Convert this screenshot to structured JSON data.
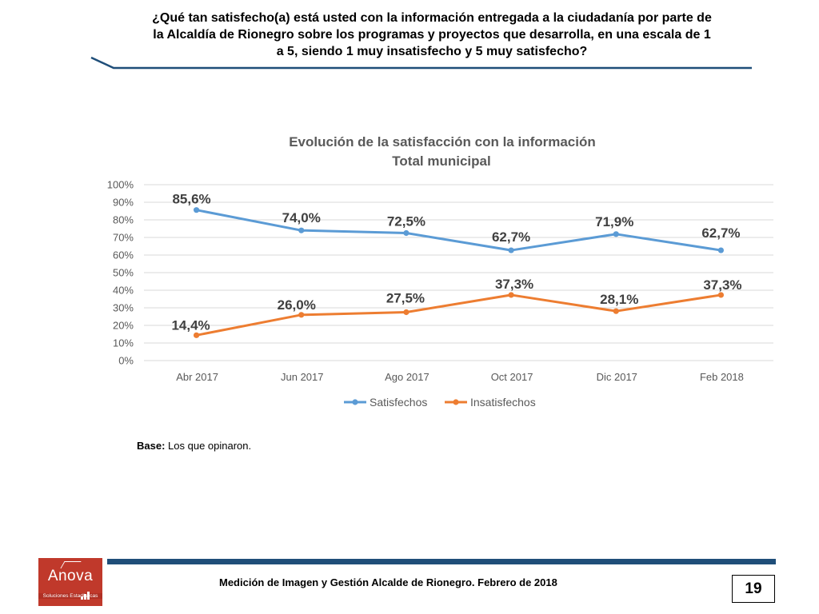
{
  "question": {
    "lines": [
      "¿Qué tan satisfecho(a) está usted con la información entregada a la ciudadanía por parte de",
      "la Alcaldía de Rionegro sobre los programas y proyectos que desarrolla, en una escala de 1",
      "a 5, siendo 1 muy insatisfecho y 5 muy satisfecho?"
    ]
  },
  "chart_data": {
    "type": "line",
    "title": "Evolución de la satisfacción con la información",
    "subtitle": "Total municipal",
    "categories": [
      "Abr 2017",
      "Jun 2017",
      "Ago 2017",
      "Oct 2017",
      "Dic 2017",
      "Feb 2018"
    ],
    "ylim": [
      0,
      100
    ],
    "yticks": [
      "0%",
      "10%",
      "20%",
      "30%",
      "40%",
      "50%",
      "60%",
      "70%",
      "80%",
      "90%",
      "100%"
    ],
    "grid": true,
    "legend_position": "bottom",
    "series": [
      {
        "name": "Satisfechos",
        "color": "#5b9bd5",
        "values": [
          85.6,
          74.0,
          72.5,
          62.7,
          71.9,
          62.7
        ],
        "labels": [
          "85,6%",
          "74,0%",
          "72,5%",
          "62,7%",
          "71,9%",
          "62,7%"
        ]
      },
      {
        "name": "Insatisfechos",
        "color": "#ed7d31",
        "values": [
          14.4,
          26.0,
          27.5,
          37.3,
          28.1,
          37.3
        ],
        "labels": [
          "14,4%",
          "26,0%",
          "27,5%",
          "37,3%",
          "28,1%",
          "37,3%"
        ]
      }
    ]
  },
  "base_note": {
    "label": "Base:",
    "text": " Los que opinaron."
  },
  "footer": {
    "text": "Medición de Imagen y Gestión Alcalde de Rionegro. Febrero de 2018",
    "page_number": "19",
    "logo_name": "Anova",
    "logo_tagline": "Soluciones Estadísticas",
    "bar_color": "#1f4e79"
  }
}
